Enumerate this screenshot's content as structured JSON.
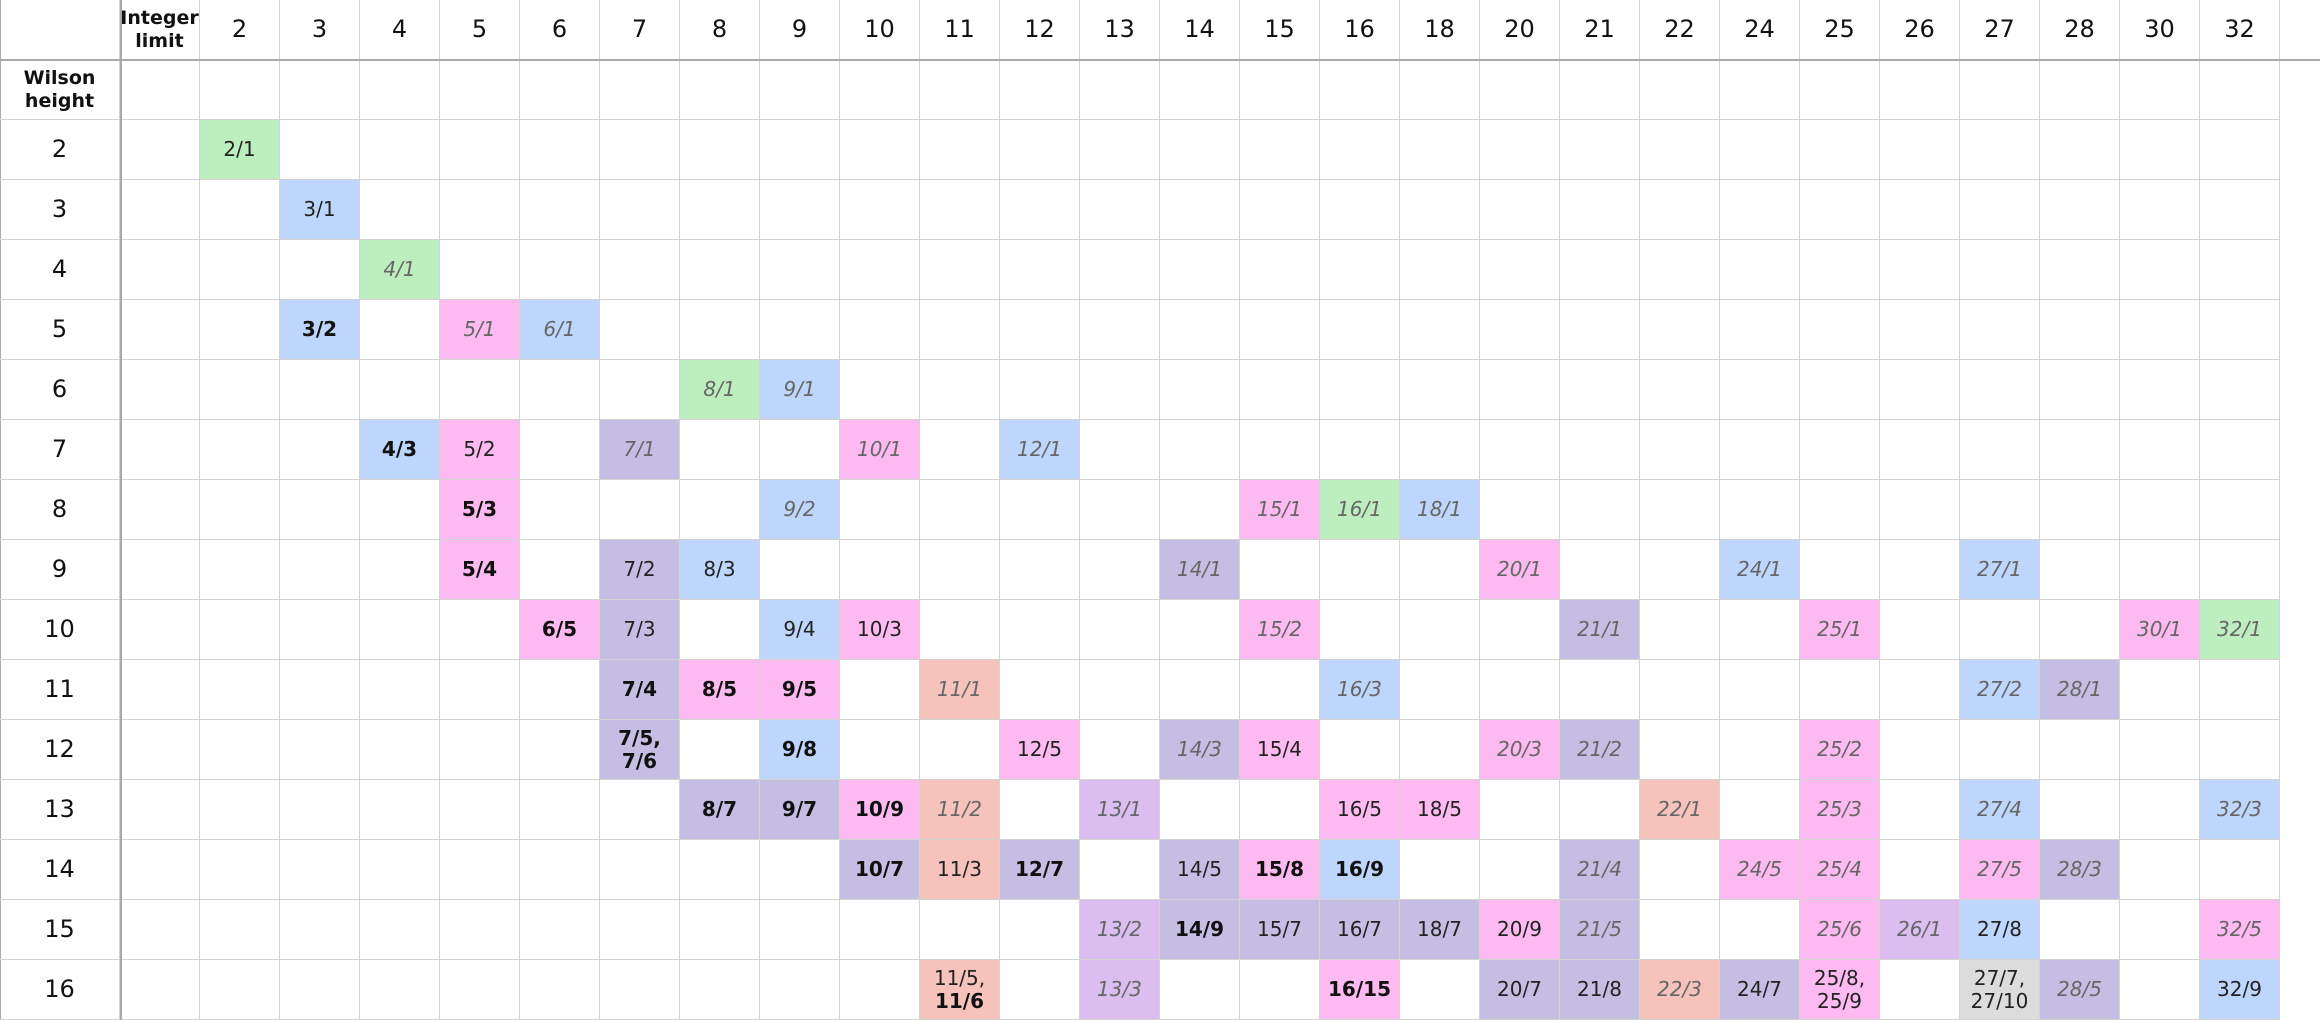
{
  "corner": {
    "integer_limit": "Integer\nlimit",
    "wilson_height": "Wilson\nheight"
  },
  "columns": [
    "2",
    "3",
    "4",
    "5",
    "6",
    "7",
    "8",
    "9",
    "10",
    "11",
    "12",
    "13",
    "14",
    "15",
    "16",
    "18",
    "20",
    "21",
    "22",
    "24",
    "25",
    "26",
    "27",
    "28",
    "30",
    "32"
  ],
  "rows": [
    "2",
    "3",
    "4",
    "5",
    "6",
    "7",
    "8",
    "9",
    "10",
    "11",
    "12",
    "13",
    "14",
    "15",
    "16"
  ],
  "colors": {
    "green": "#bdeebf",
    "blue": "#bed5fc",
    "pink": "#fcbaf0",
    "purple": "#c6bde2",
    "violet": "#dbbdf0",
    "salmon": "#f5c2bc",
    "grey": "#dcdcdc",
    "grid_line": "#d4d4d4",
    "header_line": "#a9a9a9"
  },
  "cells": [
    {
      "row": "2",
      "col": "2",
      "text": "2/1",
      "color": "green",
      "style": "normal"
    },
    {
      "row": "3",
      "col": "3",
      "text": "3/1",
      "color": "blue",
      "style": "normal"
    },
    {
      "row": "4",
      "col": "4",
      "text": "4/1",
      "color": "green",
      "style": "italic"
    },
    {
      "row": "5",
      "col": "3",
      "text": "3/2",
      "color": "blue",
      "style": "bold"
    },
    {
      "row": "5",
      "col": "5",
      "text": "5/1",
      "color": "pink",
      "style": "italic"
    },
    {
      "row": "5",
      "col": "6",
      "text": "6/1",
      "color": "blue",
      "style": "italic"
    },
    {
      "row": "6",
      "col": "8",
      "text": "8/1",
      "color": "green",
      "style": "italic"
    },
    {
      "row": "6",
      "col": "9",
      "text": "9/1",
      "color": "blue",
      "style": "italic"
    },
    {
      "row": "7",
      "col": "4",
      "text": "4/3",
      "color": "blue",
      "style": "bold"
    },
    {
      "row": "7",
      "col": "5",
      "text": "5/2",
      "color": "pink",
      "style": "normal"
    },
    {
      "row": "7",
      "col": "7",
      "text": "7/1",
      "color": "purple",
      "style": "italic"
    },
    {
      "row": "7",
      "col": "10",
      "text": "10/1",
      "color": "pink",
      "style": "italic"
    },
    {
      "row": "7",
      "col": "12",
      "text": "12/1",
      "color": "blue",
      "style": "italic"
    },
    {
      "row": "8",
      "col": "5",
      "text": "5/3",
      "color": "pink",
      "style": "bold"
    },
    {
      "row": "8",
      "col": "9",
      "text": "9/2",
      "color": "blue",
      "style": "italic"
    },
    {
      "row": "8",
      "col": "15",
      "text": "15/1",
      "color": "pink",
      "style": "italic"
    },
    {
      "row": "8",
      "col": "16",
      "text": "16/1",
      "color": "green",
      "style": "italic"
    },
    {
      "row": "8",
      "col": "18",
      "text": "18/1",
      "color": "blue",
      "style": "italic"
    },
    {
      "row": "9",
      "col": "5",
      "text": "5/4",
      "color": "pink",
      "style": "bold"
    },
    {
      "row": "9",
      "col": "7",
      "text": "7/2",
      "color": "purple",
      "style": "normal"
    },
    {
      "row": "9",
      "col": "8",
      "text": "8/3",
      "color": "blue",
      "style": "normal"
    },
    {
      "row": "9",
      "col": "14",
      "text": "14/1",
      "color": "purple",
      "style": "italic"
    },
    {
      "row": "9",
      "col": "20",
      "text": "20/1",
      "color": "pink",
      "style": "italic"
    },
    {
      "row": "9",
      "col": "24",
      "text": "24/1",
      "color": "blue",
      "style": "italic"
    },
    {
      "row": "9",
      "col": "27",
      "text": "27/1",
      "color": "blue",
      "style": "italic"
    },
    {
      "row": "10",
      "col": "6",
      "text": "6/5",
      "color": "pink",
      "style": "bold"
    },
    {
      "row": "10",
      "col": "7",
      "text": "7/3",
      "color": "purple",
      "style": "normal"
    },
    {
      "row": "10",
      "col": "9",
      "text": "9/4",
      "color": "blue",
      "style": "normal"
    },
    {
      "row": "10",
      "col": "10",
      "text": "10/3",
      "color": "pink",
      "style": "normal"
    },
    {
      "row": "10",
      "col": "15",
      "text": "15/2",
      "color": "pink",
      "style": "italic"
    },
    {
      "row": "10",
      "col": "21",
      "text": "21/1",
      "color": "purple",
      "style": "italic"
    },
    {
      "row": "10",
      "col": "25",
      "text": "25/1",
      "color": "pink",
      "style": "italic"
    },
    {
      "row": "10",
      "col": "30",
      "text": "30/1",
      "color": "pink",
      "style": "italic"
    },
    {
      "row": "10",
      "col": "32",
      "text": "32/1",
      "color": "green",
      "style": "italic"
    },
    {
      "row": "11",
      "col": "7",
      "text": "7/4",
      "color": "purple",
      "style": "bold"
    },
    {
      "row": "11",
      "col": "8",
      "text": "8/5",
      "color": "pink",
      "style": "bold"
    },
    {
      "row": "11",
      "col": "9",
      "text": "9/5",
      "color": "pink",
      "style": "bold"
    },
    {
      "row": "11",
      "col": "11",
      "text": "11/1",
      "color": "salmon",
      "style": "italic"
    },
    {
      "row": "11",
      "col": "16",
      "text": "16/3",
      "color": "blue",
      "style": "italic"
    },
    {
      "row": "11",
      "col": "27",
      "text": "27/2",
      "color": "blue",
      "style": "italic"
    },
    {
      "row": "11",
      "col": "28",
      "text": "28/1",
      "color": "purple",
      "style": "italic"
    },
    {
      "row": "12",
      "col": "7",
      "text": "7/5,\n7/6",
      "color": "purple",
      "style": "bold"
    },
    {
      "row": "12",
      "col": "9",
      "text": "9/8",
      "color": "blue",
      "style": "bold"
    },
    {
      "row": "12",
      "col": "12",
      "text": "12/5",
      "color": "pink",
      "style": "normal"
    },
    {
      "row": "12",
      "col": "14",
      "text": "14/3",
      "color": "purple",
      "style": "italic"
    },
    {
      "row": "12",
      "col": "15",
      "text": "15/4",
      "color": "pink",
      "style": "normal"
    },
    {
      "row": "12",
      "col": "20",
      "text": "20/3",
      "color": "pink",
      "style": "italic"
    },
    {
      "row": "12",
      "col": "21",
      "text": "21/2",
      "color": "purple",
      "style": "italic"
    },
    {
      "row": "12",
      "col": "25",
      "text": "25/2",
      "color": "pink",
      "style": "italic"
    },
    {
      "row": "13",
      "col": "8",
      "text": "8/7",
      "color": "purple",
      "style": "bold"
    },
    {
      "row": "13",
      "col": "9",
      "text": "9/7",
      "color": "purple",
      "style": "bold"
    },
    {
      "row": "13",
      "col": "10",
      "text": "10/9",
      "color": "pink",
      "style": "bold"
    },
    {
      "row": "13",
      "col": "11",
      "text": "11/2",
      "color": "salmon",
      "style": "italic"
    },
    {
      "row": "13",
      "col": "13",
      "text": "13/1",
      "color": "violet",
      "style": "italic"
    },
    {
      "row": "13",
      "col": "16",
      "text": "16/5",
      "color": "pink",
      "style": "normal"
    },
    {
      "row": "13",
      "col": "18",
      "text": "18/5",
      "color": "pink",
      "style": "normal"
    },
    {
      "row": "13",
      "col": "22",
      "text": "22/1",
      "color": "salmon",
      "style": "italic"
    },
    {
      "row": "13",
      "col": "25",
      "text": "25/3",
      "color": "pink",
      "style": "italic"
    },
    {
      "row": "13",
      "col": "27",
      "text": "27/4",
      "color": "blue",
      "style": "italic"
    },
    {
      "row": "13",
      "col": "32",
      "text": "32/3",
      "color": "blue",
      "style": "italic"
    },
    {
      "row": "14",
      "col": "10",
      "text": "10/7",
      "color": "purple",
      "style": "bold"
    },
    {
      "row": "14",
      "col": "11",
      "text": "11/3",
      "color": "salmon",
      "style": "normal"
    },
    {
      "row": "14",
      "col": "12",
      "text": "12/7",
      "color": "purple",
      "style": "bold"
    },
    {
      "row": "14",
      "col": "14",
      "text": "14/5",
      "color": "purple",
      "style": "normal"
    },
    {
      "row": "14",
      "col": "15",
      "text": "15/8",
      "color": "pink",
      "style": "bold"
    },
    {
      "row": "14",
      "col": "16",
      "text": "16/9",
      "color": "blue",
      "style": "bold"
    },
    {
      "row": "14",
      "col": "21",
      "text": "21/4",
      "color": "purple",
      "style": "italic"
    },
    {
      "row": "14",
      "col": "24",
      "text": "24/5",
      "color": "pink",
      "style": "italic"
    },
    {
      "row": "14",
      "col": "25",
      "text": "25/4",
      "color": "pink",
      "style": "italic"
    },
    {
      "row": "14",
      "col": "27",
      "text": "27/5",
      "color": "pink",
      "style": "italic"
    },
    {
      "row": "14",
      "col": "28",
      "text": "28/3",
      "color": "purple",
      "style": "italic"
    },
    {
      "row": "15",
      "col": "13",
      "text": "13/2",
      "color": "violet",
      "style": "italic"
    },
    {
      "row": "15",
      "col": "14",
      "text": "14/9",
      "color": "purple",
      "style": "bold"
    },
    {
      "row": "15",
      "col": "15",
      "text": "15/7",
      "color": "purple",
      "style": "normal"
    },
    {
      "row": "15",
      "col": "16",
      "text": "16/7",
      "color": "purple",
      "style": "normal"
    },
    {
      "row": "15",
      "col": "18",
      "text": "18/7",
      "color": "purple",
      "style": "normal"
    },
    {
      "row": "15",
      "col": "20",
      "text": "20/9",
      "color": "pink",
      "style": "normal"
    },
    {
      "row": "15",
      "col": "21",
      "text": "21/5",
      "color": "purple",
      "style": "italic"
    },
    {
      "row": "15",
      "col": "25",
      "text": "25/6",
      "color": "pink",
      "style": "italic"
    },
    {
      "row": "15",
      "col": "26",
      "text": "26/1",
      "color": "violet",
      "style": "italic"
    },
    {
      "row": "15",
      "col": "27",
      "text": "27/8",
      "color": "blue",
      "style": "normal"
    },
    {
      "row": "15",
      "col": "32",
      "text": "32/5",
      "color": "pink",
      "style": "italic"
    },
    {
      "row": "16",
      "col": "11",
      "text": "11/5,\n11/6",
      "color": "salmon",
      "style": "mixed-second-bold"
    },
    {
      "row": "16",
      "col": "13",
      "text": "13/3",
      "color": "violet",
      "style": "italic"
    },
    {
      "row": "16",
      "col": "16",
      "text": "16/15",
      "color": "pink",
      "style": "bold"
    },
    {
      "row": "16",
      "col": "20",
      "text": "20/7",
      "color": "purple",
      "style": "normal"
    },
    {
      "row": "16",
      "col": "21",
      "text": "21/8",
      "color": "purple",
      "style": "normal"
    },
    {
      "row": "16",
      "col": "22",
      "text": "22/3",
      "color": "salmon",
      "style": "italic"
    },
    {
      "row": "16",
      "col": "24",
      "text": "24/7",
      "color": "purple",
      "style": "normal"
    },
    {
      "row": "16",
      "col": "25",
      "text": "25/8,\n25/9",
      "color": "pink",
      "style": "normal"
    },
    {
      "row": "16",
      "col": "27",
      "text": "27/7,\n27/10",
      "color": "grey",
      "style": "normal"
    },
    {
      "row": "16",
      "col": "28",
      "text": "28/5",
      "color": "purple",
      "style": "italic"
    },
    {
      "row": "16",
      "col": "32",
      "text": "32/9",
      "color": "blue",
      "style": "normal"
    }
  ]
}
